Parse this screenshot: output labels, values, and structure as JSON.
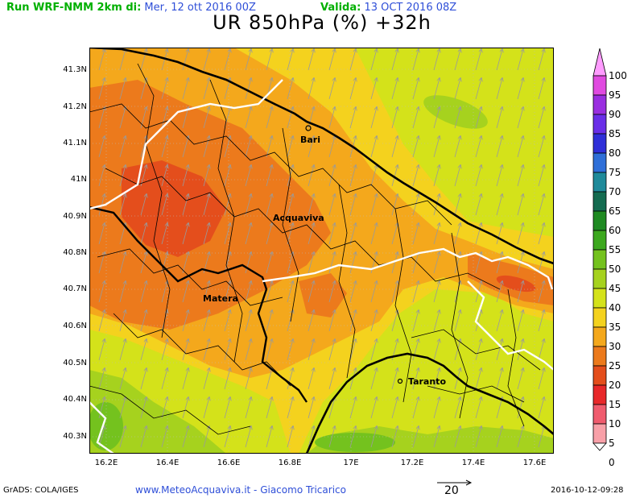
{
  "header": {
    "run_label": "Run WRF-NMM 2km di:",
    "run_date": "Mer, 12 ott 2016 00Z",
    "valid_label": "Valida:",
    "valid_date": "13 OCT 2016 08Z"
  },
  "title": "UR 850hPa (%) +32h",
  "map": {
    "lat_labels": [
      "41.3N",
      "41.2N",
      "41.1N",
      "41N",
      "40.9N",
      "40.8N",
      "40.7N",
      "40.6N",
      "40.5N",
      "40.4N",
      "40.3N"
    ],
    "lon_labels": [
      "16.2E",
      "16.4E",
      "16.6E",
      "16.8E",
      "17E",
      "17.2E",
      "17.4E",
      "17.6E"
    ],
    "cities": [
      "Bari",
      "Acquaviva",
      "Matera",
      "Taranto"
    ]
  },
  "colorbar": {
    "labels": [
      "100",
      "95",
      "90",
      "85",
      "80",
      "75",
      "70",
      "65",
      "60",
      "55",
      "50",
      "45",
      "40",
      "35",
      "30",
      "25",
      "20",
      "15",
      "10",
      "5",
      "0"
    ],
    "colors": [
      "#ff9bff",
      "#e04ae0",
      "#9a2ee0",
      "#6a2ee8",
      "#2f2fd8",
      "#2f6fd8",
      "#1f8a9a",
      "#146b50",
      "#1f8a22",
      "#3ca81e",
      "#74c21e",
      "#a6d21e",
      "#d4e21a",
      "#f4d21e",
      "#f4a81c",
      "#ec7a1c",
      "#e44e1c",
      "#e8282a",
      "#f05c6e",
      "#f8a0a8",
      "#fcd0d4"
    ]
  },
  "footer": {
    "left": "GrADS: COLA/IGES",
    "center": "www.MeteoAcquaviva.it - Giacomo Tricarico",
    "vector_ref": "20",
    "right": "2016-10-12-09:28"
  }
}
